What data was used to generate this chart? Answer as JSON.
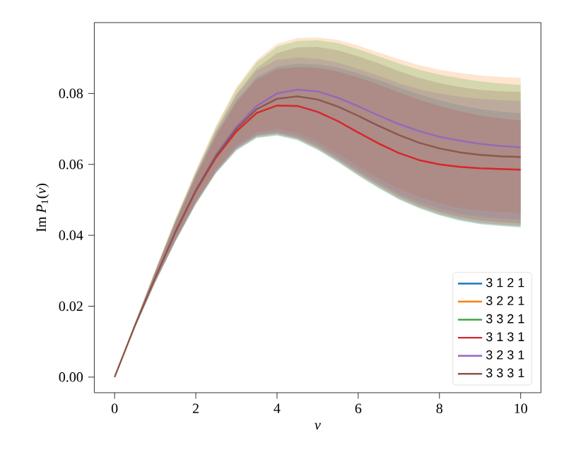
{
  "chart_data": {
    "type": "line",
    "xlabel": "*ν*",
    "ylabel": "Im *P*$_{1}$(*ν*)",
    "x": [
      0,
      0.5,
      1,
      1.5,
      2,
      2.5,
      3,
      3.5,
      4,
      4.5,
      5,
      5.5,
      6,
      6.5,
      7,
      7.5,
      8,
      8.5,
      9,
      9.5,
      10
    ],
    "xlim": [
      -0.5,
      10.5
    ],
    "ylim": [
      -0.0044,
      0.1
    ],
    "xticks": [
      0,
      2,
      4,
      6,
      8,
      10
    ],
    "yticks": [
      {
        "value": 0,
        "label": "0.00"
      },
      {
        "value": 0.02,
        "label": "0.02"
      },
      {
        "value": 0.04,
        "label": "0.04"
      },
      {
        "value": 0.06,
        "label": "0.06"
      },
      {
        "value": 0.08,
        "label": "0.08"
      }
    ],
    "grid": false,
    "legend": "bottom right",
    "marker": "none",
    "line_style": "solid",
    "series": [
      {
        "name": "3 1 2 1",
        "color": "#1f77b4",
        "values": [
          null,
          null,
          null,
          null,
          null,
          null,
          null,
          null,
          null,
          null,
          null,
          null,
          null,
          null,
          null,
          null,
          null,
          null,
          null,
          null,
          null
        ],
        "lower": [
          0,
          0.0139,
          0.0266,
          0.0383,
          0.0488,
          0.0576,
          0.064,
          0.0675,
          0.0682,
          0.0669,
          0.0642,
          0.0607,
          0.0569,
          0.0534,
          0.0502,
          0.0477,
          0.0457,
          0.0442,
          0.0432,
          0.0427,
          0.0423
        ],
        "upper": [
          0,
          0.0151,
          0.0297,
          0.0438,
          0.0569,
          0.0685,
          0.0781,
          0.0847,
          0.0876,
          0.0884,
          0.0882,
          0.0873,
          0.0857,
          0.0838,
          0.0817,
          0.0798,
          0.0781,
          0.0767,
          0.0756,
          0.0749,
          0.0744
        ]
      },
      {
        "name": "3 2 2 1",
        "color": "#ff7f0e",
        "values": [
          null,
          null,
          null,
          null,
          null,
          null,
          null,
          null,
          null,
          null,
          null,
          null,
          null,
          null,
          null,
          null,
          null,
          null,
          null,
          null,
          null
        ],
        "lower": [
          0,
          0.0142,
          0.0272,
          0.039,
          0.0497,
          0.0587,
          0.0654,
          0.0691,
          0.07,
          0.0689,
          0.0665,
          0.0631,
          0.0595,
          0.0562,
          0.0532,
          0.0509,
          0.0491,
          0.0478,
          0.047,
          0.0466,
          0.0463
        ],
        "upper": [
          0,
          0.0153,
          0.0302,
          0.0448,
          0.0584,
          0.071,
          0.0818,
          0.0895,
          0.094,
          0.0956,
          0.0958,
          0.0951,
          0.0935,
          0.0916,
          0.0897,
          0.088,
          0.0867,
          0.0858,
          0.0851,
          0.0847,
          0.0844
        ]
      },
      {
        "name": "3 3 2 1",
        "color": "#2ca02c",
        "values": [
          null,
          null,
          null,
          null,
          null,
          null,
          null,
          null,
          null,
          null,
          null,
          null,
          null,
          null,
          null,
          null,
          null,
          null,
          null,
          null,
          null
        ],
        "lower": [
          0,
          0.0139,
          0.0266,
          0.0382,
          0.0487,
          0.0575,
          0.0639,
          0.0674,
          0.0681,
          0.0668,
          0.0641,
          0.0606,
          0.0568,
          0.0533,
          0.0501,
          0.0476,
          0.0456,
          0.0441,
          0.0431,
          0.0426,
          0.0422
        ],
        "upper": [
          0,
          0.0152,
          0.03,
          0.0445,
          0.058,
          0.0705,
          0.0812,
          0.0888,
          0.0932,
          0.0948,
          0.095,
          0.0942,
          0.0925,
          0.0905,
          0.0885,
          0.0867,
          0.0853,
          0.0843,
          0.0834,
          0.0828,
          0.0824
        ]
      },
      {
        "name": "3 1 3 1",
        "color": "#d62728",
        "values": [
          null,
          null,
          null,
          0.041,
          0.0525,
          0.062,
          0.0693,
          0.0745,
          0.0766,
          0.0765,
          0.0748,
          0.0722,
          0.069,
          0.0659,
          0.0632,
          0.0612,
          0.06,
          0.0593,
          0.0589,
          0.0587,
          0.0585
        ],
        "lower": [
          0,
          0.014,
          0.0268,
          0.0385,
          0.049,
          0.0578,
          0.0643,
          0.0678,
          0.0685,
          0.0672,
          0.0645,
          0.061,
          0.0572,
          0.0537,
          0.0505,
          0.048,
          0.046,
          0.0445,
          0.0435,
          0.043,
          0.0426
        ],
        "upper": [
          0,
          0.015,
          0.0295,
          0.0435,
          0.0565,
          0.068,
          0.0775,
          0.084,
          0.0868,
          0.0875,
          0.0872,
          0.0862,
          0.0845,
          0.0825,
          0.0803,
          0.0783,
          0.0765,
          0.075,
          0.0738,
          0.073,
          0.0724
        ]
      },
      {
        "name": "3 2 3 1",
        "color": "#9467bd",
        "values": [
          null,
          null,
          0.028,
          0.041,
          0.0527,
          0.0627,
          0.0706,
          0.0765,
          0.08,
          0.0811,
          0.0806,
          0.0788,
          0.0764,
          0.0738,
          0.0714,
          0.0694,
          0.0678,
          0.0667,
          0.0658,
          0.0652,
          0.0648
        ],
        "lower": [
          0,
          0.0141,
          0.027,
          0.0387,
          0.0493,
          0.0582,
          0.0648,
          0.0684,
          0.0692,
          0.068,
          0.0655,
          0.062,
          0.0583,
          0.0549,
          0.0518,
          0.0494,
          0.0475,
          0.0461,
          0.0452,
          0.0447,
          0.0444
        ],
        "upper": [
          0,
          0.0151,
          0.0298,
          0.0442,
          0.0575,
          0.0695,
          0.0795,
          0.0865,
          0.0895,
          0.0902,
          0.0898,
          0.0887,
          0.0869,
          0.085,
          0.0829,
          0.0812,
          0.08,
          0.0791,
          0.0785,
          0.0781,
          0.0779
        ]
      },
      {
        "name": "3 3 3 1",
        "color": "#8c564b",
        "values": [
          0,
          0.0145,
          0.028,
          0.041,
          0.0526,
          0.0624,
          0.07,
          0.0756,
          0.0785,
          0.0792,
          0.0783,
          0.0763,
          0.0737,
          0.0709,
          0.0683,
          0.0661,
          0.0645,
          0.0634,
          0.0627,
          0.0623,
          0.0621
        ],
        "lower": [
          0,
          0.0141,
          0.0269,
          0.0386,
          0.0492,
          0.058,
          0.0646,
          0.0681,
          0.0688,
          0.0675,
          0.0649,
          0.0614,
          0.0577,
          0.0542,
          0.0511,
          0.0486,
          0.0466,
          0.0452,
          0.0442,
          0.0437,
          0.0433
        ],
        "upper": [
          0,
          0.0151,
          0.0298,
          0.0441,
          0.0574,
          0.0695,
          0.0798,
          0.0872,
          0.0914,
          0.093,
          0.0931,
          0.0922,
          0.0905,
          0.0885,
          0.0863,
          0.0844,
          0.0829,
          0.0818,
          0.081,
          0.0806,
          0.0804
        ]
      }
    ]
  }
}
